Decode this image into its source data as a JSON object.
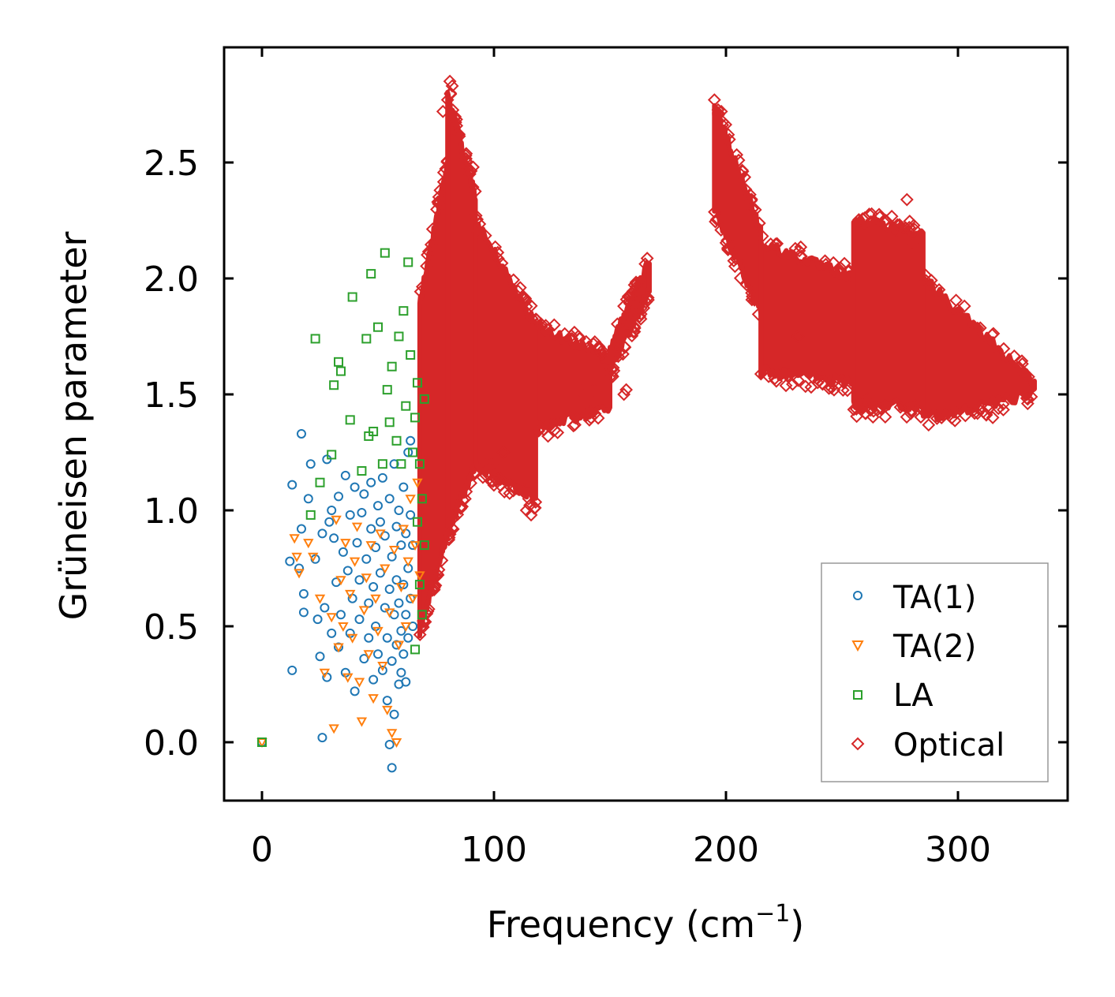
{
  "chart_data": {
    "type": "scatter",
    "title": "",
    "xlabel": "Frequency (cm",
    "xlabel_sup": "−1",
    "xlabel_close": ")",
    "ylabel": "Grüneisen parameter",
    "xlim": [
      -17,
      347
    ],
    "ylim": [
      -0.25,
      3.0
    ],
    "xticks": [
      0,
      100,
      200,
      300
    ],
    "yticks": [
      0.0,
      0.5,
      1.0,
      1.5,
      2.0,
      2.5
    ],
    "xtick_labels": [
      "0",
      "100",
      "200",
      "300"
    ],
    "ytick_labels": [
      "0.0",
      "0.5",
      "1.0",
      "1.5",
      "2.0",
      "2.5"
    ],
    "legend_position": "lower-right",
    "series": [
      {
        "name": "TA(1)",
        "marker": "circle",
        "color": "#1f77b4",
        "points": [
          [
            0,
            0.0
          ],
          [
            12,
            0.78
          ],
          [
            13,
            0.31
          ],
          [
            13,
            1.11
          ],
          [
            16,
            0.75
          ],
          [
            17,
            1.33
          ],
          [
            17,
            0.92
          ],
          [
            18,
            0.64
          ],
          [
            18,
            0.56
          ],
          [
            20,
            1.05
          ],
          [
            21,
            1.2
          ],
          [
            23,
            0.79
          ],
          [
            24,
            0.53
          ],
          [
            25,
            0.37
          ],
          [
            26,
            0.02
          ],
          [
            26,
            0.9
          ],
          [
            27,
            0.58
          ],
          [
            28,
            1.22
          ],
          [
            28,
            0.28
          ],
          [
            29,
            0.95
          ],
          [
            30,
            1.0
          ],
          [
            30,
            0.47
          ],
          [
            31,
            0.88
          ],
          [
            32,
            0.69
          ],
          [
            33,
            0.41
          ],
          [
            33,
            1.06
          ],
          [
            34,
            0.55
          ],
          [
            35,
            0.82
          ],
          [
            36,
            1.15
          ],
          [
            36,
            0.3
          ],
          [
            37,
            0.74
          ],
          [
            38,
            0.47
          ],
          [
            38,
            0.98
          ],
          [
            39,
            0.62
          ],
          [
            40,
            1.1
          ],
          [
            40,
            0.22
          ],
          [
            41,
            0.86
          ],
          [
            42,
            0.53
          ],
          [
            42,
            0.7
          ],
          [
            43,
            0.99
          ],
          [
            44,
            0.36
          ],
          [
            44,
            1.07
          ],
          [
            45,
            0.79
          ],
          [
            46,
            0.6
          ],
          [
            46,
            0.45
          ],
          [
            47,
            0.92
          ],
          [
            47,
            1.12
          ],
          [
            48,
            0.27
          ],
          [
            48,
            0.67
          ],
          [
            49,
            0.84
          ],
          [
            49,
            0.5
          ],
          [
            50,
            1.02
          ],
          [
            50,
            0.38
          ],
          [
            51,
            0.73
          ],
          [
            51,
            0.95
          ],
          [
            52,
            0.31
          ],
          [
            52,
            1.14
          ],
          [
            53,
            0.58
          ],
          [
            53,
            0.89
          ],
          [
            54,
            0.45
          ],
          [
            54,
            0.18
          ],
          [
            55,
            1.05
          ],
          [
            55,
            0.66
          ],
          [
            55,
            -0.01
          ],
          [
            56,
            -0.11
          ],
          [
            56,
            0.8
          ],
          [
            56,
            0.35
          ],
          [
            57,
            0.12
          ],
          [
            57,
            1.2
          ],
          [
            57,
            0.55
          ],
          [
            58,
            0.93
          ],
          [
            58,
            0.42
          ],
          [
            58,
            0.7
          ],
          [
            59,
            0.25
          ],
          [
            59,
            1.0
          ],
          [
            59,
            0.6
          ],
          [
            60,
            0.85
          ],
          [
            60,
            0.48
          ],
          [
            60,
            0.3
          ],
          [
            61,
            1.1
          ],
          [
            61,
            0.68
          ],
          [
            61,
            0.38
          ],
          [
            62,
            0.26
          ],
          [
            62,
            0.9
          ],
          [
            62,
            0.55
          ],
          [
            63,
            1.25
          ],
          [
            63,
            0.75
          ],
          [
            63,
            0.45
          ],
          [
            64,
            0.98
          ],
          [
            64,
            0.62
          ],
          [
            64,
            1.3
          ],
          [
            65,
            0.85
          ],
          [
            65,
            0.5
          ]
        ]
      },
      {
        "name": "TA(2)",
        "marker": "triangle-down",
        "color": "#ff7f0e",
        "points": [
          [
            0,
            0.0
          ],
          [
            14,
            0.88
          ],
          [
            15,
            0.8
          ],
          [
            16,
            0.73
          ],
          [
            20,
            0.86
          ],
          [
            22,
            0.8
          ],
          [
            25,
            0.62
          ],
          [
            27,
            0.3
          ],
          [
            30,
            0.54
          ],
          [
            31,
            0.06
          ],
          [
            32,
            0.96
          ],
          [
            33,
            0.41
          ],
          [
            34,
            0.7
          ],
          [
            35,
            0.5
          ],
          [
            36,
            0.86
          ],
          [
            37,
            0.28
          ],
          [
            38,
            0.64
          ],
          [
            39,
            0.45
          ],
          [
            40,
            0.78
          ],
          [
            41,
            0.93
          ],
          [
            42,
            0.26
          ],
          [
            43,
            0.09
          ],
          [
            44,
            0.57
          ],
          [
            45,
            0.71
          ],
          [
            46,
            0.38
          ],
          [
            47,
            0.85
          ],
          [
            48,
            0.19
          ],
          [
            49,
            0.62
          ],
          [
            50,
            0.48
          ],
          [
            51,
            0.9
          ],
          [
            52,
            0.33
          ],
          [
            53,
            0.75
          ],
          [
            54,
            0.14
          ],
          [
            55,
            0.56
          ],
          [
            56,
            0.04
          ],
          [
            57,
            0.83
          ],
          [
            58,
            0.0
          ],
          [
            59,
            0.42
          ],
          [
            60,
            0.67
          ],
          [
            61,
            0.92
          ],
          [
            62,
            0.5
          ],
          [
            63,
            0.78
          ],
          [
            64,
            1.05
          ],
          [
            65,
            0.62
          ],
          [
            66,
            0.85
          ],
          [
            67,
            1.12
          ],
          [
            68,
            0.72
          ]
        ]
      },
      {
        "name": "LA",
        "marker": "square",
        "color": "#2ca02c",
        "points": [
          [
            0,
            0.0
          ],
          [
            21,
            0.98
          ],
          [
            23,
            1.74
          ],
          [
            25,
            1.12
          ],
          [
            30,
            1.24
          ],
          [
            31,
            1.54
          ],
          [
            33,
            1.64
          ],
          [
            34,
            1.6
          ],
          [
            38,
            1.39
          ],
          [
            39,
            1.92
          ],
          [
            43,
            1.17
          ],
          [
            45,
            1.74
          ],
          [
            46,
            1.32
          ],
          [
            47,
            2.02
          ],
          [
            48,
            1.34
          ],
          [
            50,
            1.79
          ],
          [
            52,
            1.2
          ],
          [
            53,
            2.11
          ],
          [
            54,
            1.52
          ],
          [
            55,
            1.38
          ],
          [
            56,
            1.62
          ],
          [
            58,
            1.3
          ],
          [
            59,
            1.75
          ],
          [
            60,
            1.2
          ],
          [
            61,
            1.86
          ],
          [
            62,
            1.45
          ],
          [
            63,
            2.07
          ],
          [
            64,
            1.67
          ],
          [
            65,
            1.25
          ],
          [
            66,
            1.4
          ],
          [
            66,
            0.4
          ],
          [
            67,
            0.95
          ],
          [
            67,
            1.55
          ],
          [
            68,
            0.68
          ],
          [
            68,
            1.2
          ],
          [
            69,
            0.55
          ],
          [
            69,
            1.05
          ],
          [
            70,
            0.85
          ],
          [
            70,
            1.48
          ]
        ]
      },
      {
        "name": "Optical",
        "marker": "diamond",
        "color": "#d62728",
        "groups": [
          {
            "x_start": 68,
            "x_end": 80,
            "y_min_start": 0.48,
            "y_min_end": 0.9,
            "y_max_start": 1.9,
            "y_max_end": 2.5
          },
          {
            "x_start": 80,
            "x_end": 92,
            "y_min_start": 0.9,
            "y_max_start": 2.8,
            "y_min_end": 1.2,
            "y_max_end": 2.35
          },
          {
            "x_start": 92,
            "x_end": 118,
            "y_min_start": 1.2,
            "y_max_start": 2.25,
            "y_min_end": 1.05,
            "y_max_end": 1.8
          },
          {
            "x_start": 118,
            "x_end": 150,
            "y_min_start": 1.35,
            "y_max_start": 1.8,
            "y_min_end": 1.45,
            "y_max_end": 1.65
          },
          {
            "x_start": 150,
            "x_end": 167,
            "y_min_start": 1.6,
            "y_max_start": 1.7,
            "y_min_end": 1.95,
            "y_max_end": 2.08
          },
          {
            "x_start": 195,
            "x_end": 215,
            "y_min_start": 2.3,
            "y_max_start": 2.75,
            "y_min_end": 1.85,
            "y_max_end": 2.2
          },
          {
            "x_start": 215,
            "x_end": 255,
            "y_min_start": 1.6,
            "y_max_start": 2.15,
            "y_min_end": 1.55,
            "y_max_end": 2.0
          },
          {
            "x_start": 255,
            "x_end": 285,
            "y_min_start": 1.45,
            "y_max_start": 2.25,
            "y_min_end": 1.45,
            "y_max_end": 2.2
          },
          {
            "x_start": 285,
            "x_end": 333,
            "y_min_start": 1.4,
            "y_max_start": 2.0,
            "y_min_end": 1.5,
            "y_max_end": 1.55
          }
        ],
        "outliers": [
          [
            78,
            2.72
          ],
          [
            80,
            2.77
          ],
          [
            81,
            2.85
          ],
          [
            82,
            2.83
          ],
          [
            84,
            2.62
          ],
          [
            88,
            2.45
          ],
          [
            91,
            2.48
          ],
          [
            93,
            2.2
          ],
          [
            97,
            1.2
          ],
          [
            99,
            1.2
          ],
          [
            104,
            1.25
          ],
          [
            112,
            1.92
          ],
          [
            114,
            1.0
          ],
          [
            116,
            0.98
          ],
          [
            137,
            1.52
          ],
          [
            143,
            1.52
          ],
          [
            156,
            1.5
          ],
          [
            157,
            1.52
          ],
          [
            195,
            2.77
          ],
          [
            198,
            2.72
          ],
          [
            201,
            2.62
          ],
          [
            222,
            2.15
          ],
          [
            231,
            1.75
          ],
          [
            244,
            1.6
          ],
          [
            247,
            1.62
          ],
          [
            259,
            1.47
          ],
          [
            261,
            1.48
          ],
          [
            273,
            2.2
          ],
          [
            278,
            2.34
          ],
          [
            279,
            2.22
          ],
          [
            281,
            2.15
          ],
          [
            313,
            1.45
          ],
          [
            315,
            1.4
          ]
        ]
      }
    ]
  }
}
